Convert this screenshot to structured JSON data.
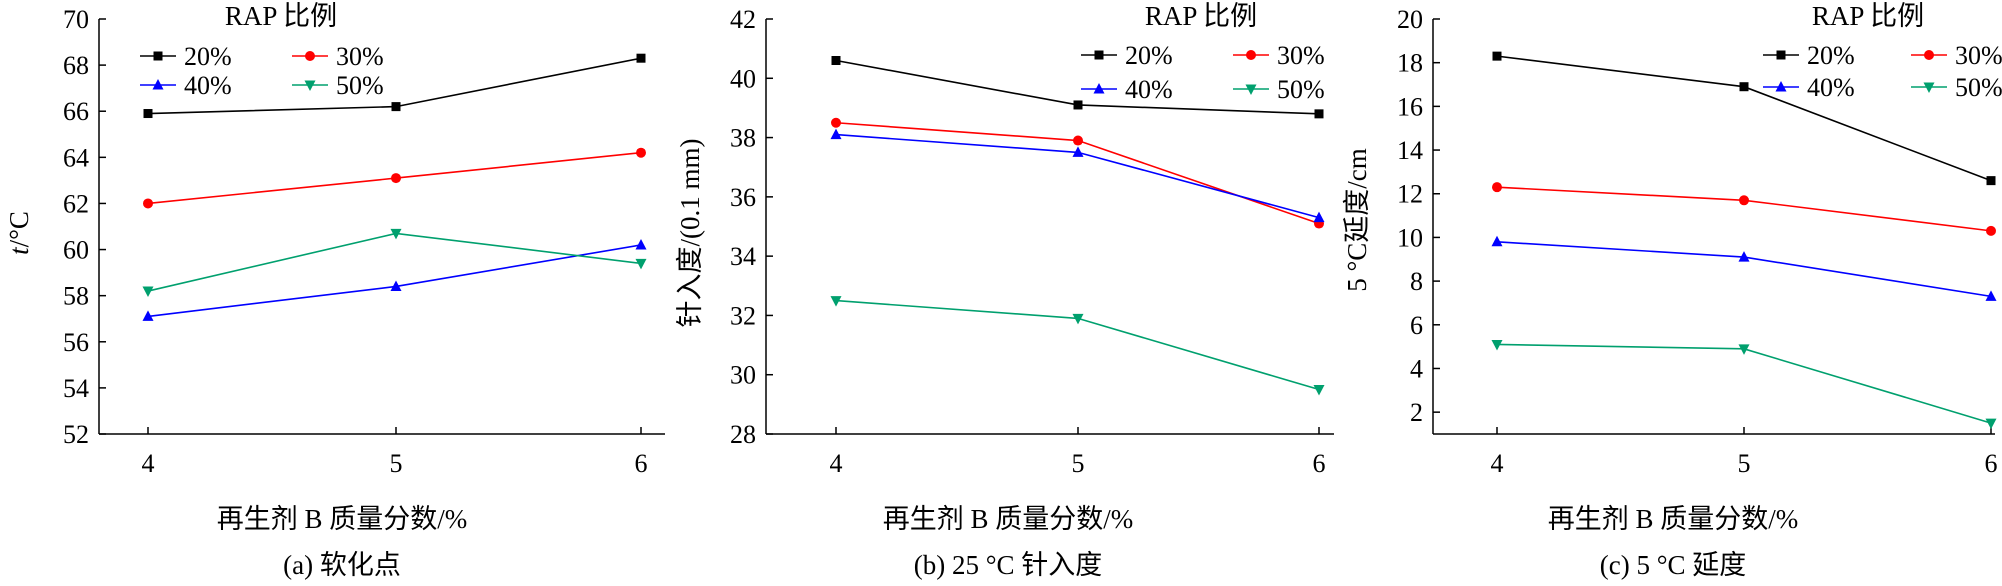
{
  "series_styles": [
    {
      "name": "20%",
      "color": "#000000",
      "marker": "square"
    },
    {
      "name": "30%",
      "color": "#ff0000",
      "marker": "circle"
    },
    {
      "name": "40%",
      "color": "#0000ff",
      "marker": "triangle-up"
    },
    {
      "name": "50%",
      "color": "#00a06e",
      "marker": "triangle-down"
    }
  ],
  "chart_data": [
    {
      "type": "line",
      "caption": "(a) 软化点",
      "xlabel": "再生剂 B 质量分数/%",
      "ylabel_italic": "t",
      "ylabel_rest": "/°C",
      "legend_title": "RAP 比例",
      "categories": [
        "4",
        "5",
        "6"
      ],
      "ylim": [
        52,
        70
      ],
      "yticks": [
        52,
        54,
        56,
        58,
        60,
        62,
        64,
        66,
        68,
        70
      ],
      "series": [
        {
          "name": "20%",
          "values": [
            65.9,
            66.2,
            68.3
          ]
        },
        {
          "name": "30%",
          "values": [
            62.0,
            63.1,
            64.2
          ]
        },
        {
          "name": "40%",
          "values": [
            57.1,
            58.4,
            60.2
          ]
        },
        {
          "name": "50%",
          "values": [
            58.2,
            60.7,
            59.4
          ]
        }
      ]
    },
    {
      "type": "line",
      "caption": "(b) 25 °C 针入度",
      "xlabel": "再生剂 B 质量分数/%",
      "ylabel_italic": "",
      "ylabel_rest": "针入度/(0.1 mm)",
      "legend_title": "RAP 比例",
      "categories": [
        "4",
        "5",
        "6"
      ],
      "ylim": [
        28,
        42
      ],
      "yticks": [
        28,
        30,
        32,
        34,
        36,
        38,
        40,
        42
      ],
      "series": [
        {
          "name": "20%",
          "values": [
            40.6,
            39.1,
            38.8
          ]
        },
        {
          "name": "30%",
          "values": [
            38.5,
            37.9,
            35.1
          ]
        },
        {
          "name": "40%",
          "values": [
            38.1,
            37.5,
            35.3
          ]
        },
        {
          "name": "50%",
          "values": [
            32.5,
            31.9,
            29.5
          ]
        }
      ]
    },
    {
      "type": "line",
      "caption": "(c) 5 °C 延度",
      "xlabel": "再生剂 B 质量分数/%",
      "ylabel_italic": "",
      "ylabel_rest": "5 °C延度/cm",
      "legend_title": "RAP 比例",
      "categories": [
        "4",
        "5",
        "6"
      ],
      "ylim": [
        1,
        20
      ],
      "yticks": [
        2,
        4,
        6,
        8,
        10,
        12,
        14,
        16,
        18,
        20
      ],
      "series": [
        {
          "name": "20%",
          "values": [
            18.3,
            16.9,
            12.6
          ]
        },
        {
          "name": "30%",
          "values": [
            12.3,
            11.7,
            10.3
          ]
        },
        {
          "name": "40%",
          "values": [
            9.8,
            9.1,
            7.3
          ]
        },
        {
          "name": "50%",
          "values": [
            5.1,
            4.9,
            1.5
          ]
        }
      ]
    }
  ]
}
